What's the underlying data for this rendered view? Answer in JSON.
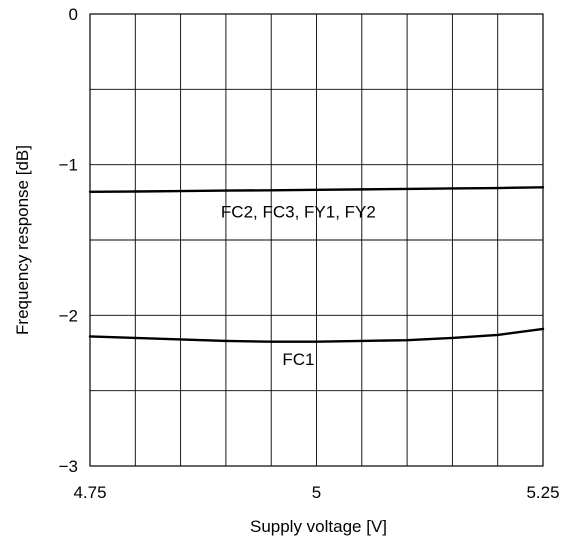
{
  "chart_data": {
    "type": "line",
    "title": "",
    "xlabel": "Supply voltage [V]",
    "ylabel": "Frequency response [dB]",
    "xlim": [
      4.75,
      5.25
    ],
    "ylim": [
      -3,
      0
    ],
    "x_ticks": [
      4.75,
      5,
      5.25
    ],
    "x_tick_labels": [
      "4.75",
      "5",
      "5.25"
    ],
    "y_ticks": [
      0,
      -1,
      -2,
      -3
    ],
    "y_tick_labels": [
      "0",
      "−1",
      "−2",
      "−3"
    ],
    "x_grid_step": 0.05,
    "y_grid_step": 0.5,
    "grid": true,
    "legend": "none",
    "series": [
      {
        "name": "FC2, FC3, FY1, FY2",
        "x": [
          4.75,
          4.8,
          4.85,
          4.9,
          4.95,
          5.0,
          5.05,
          5.1,
          5.15,
          5.2,
          5.25
        ],
        "y": [
          -1.18,
          -1.178,
          -1.175,
          -1.172,
          -1.17,
          -1.167,
          -1.164,
          -1.161,
          -1.158,
          -1.155,
          -1.15
        ]
      },
      {
        "name": "FC1",
        "x": [
          4.75,
          4.8,
          4.85,
          4.9,
          4.95,
          5.0,
          5.05,
          5.1,
          5.15,
          5.2,
          5.25
        ],
        "y": [
          -2.14,
          -2.15,
          -2.16,
          -2.17,
          -2.175,
          -2.175,
          -2.17,
          -2.165,
          -2.15,
          -2.13,
          -2.09
        ]
      }
    ],
    "annotations": [
      {
        "text": "FC2, FC3, FY1, FY2",
        "x": 4.98,
        "y": -1.35
      },
      {
        "text": "FC1",
        "x": 4.98,
        "y": -2.33
      }
    ],
    "line_color": "#000000",
    "grid_color": "#000000"
  }
}
